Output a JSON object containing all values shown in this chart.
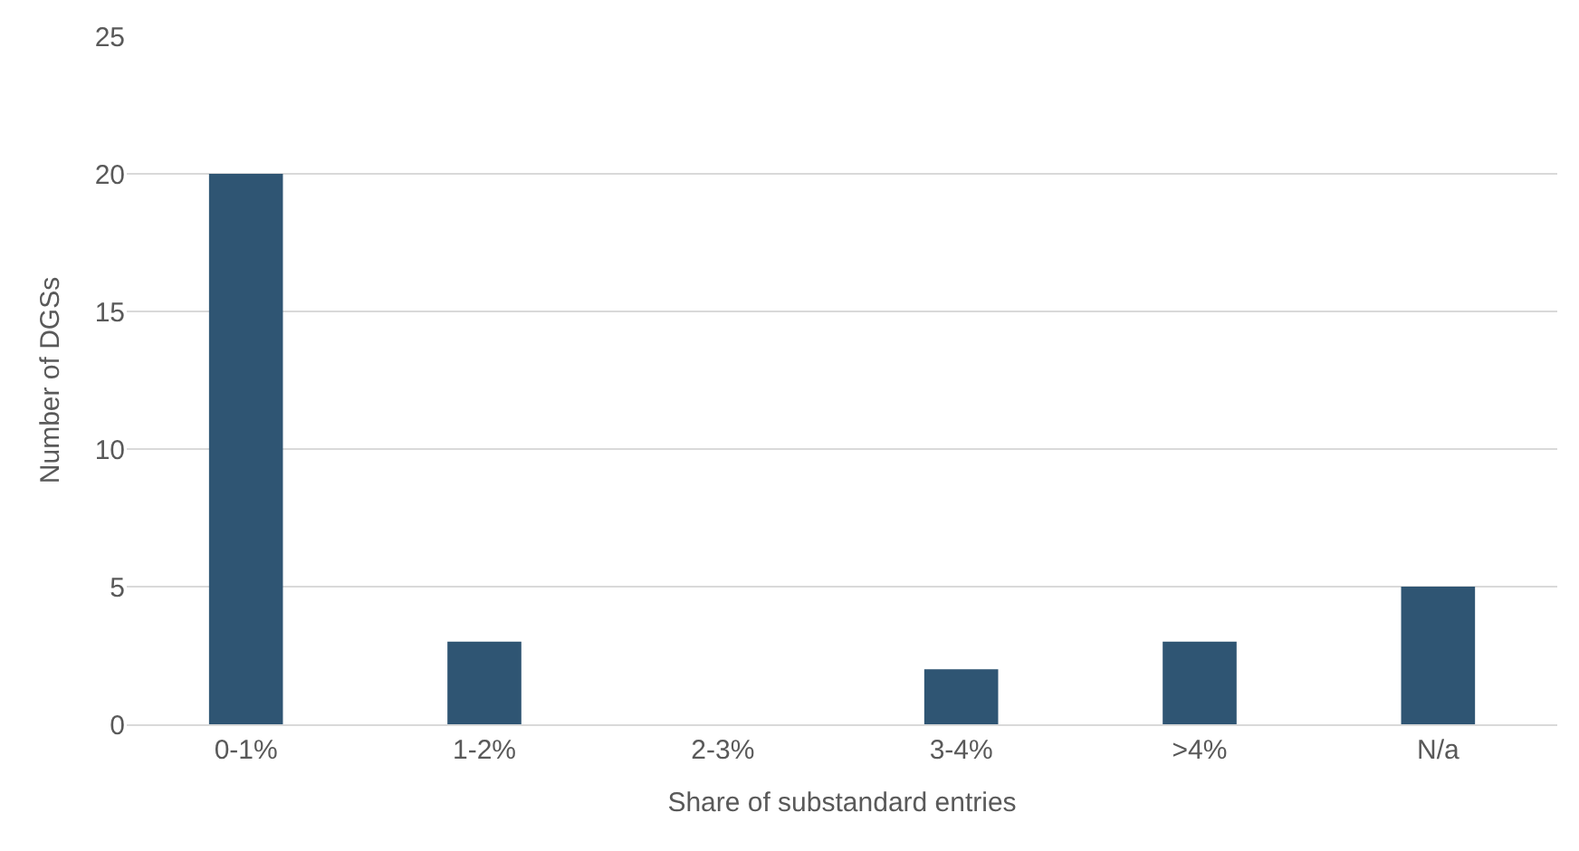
{
  "chart_data": {
    "type": "bar",
    "xlabel": "Share of substandard entries",
    "ylabel": "Number of DGSs",
    "categories": [
      "0-1%",
      "1-2%",
      "2-3%",
      "3-4%",
      ">4%",
      "N/a"
    ],
    "values": [
      20,
      3,
      0,
      2,
      3,
      5
    ],
    "color": "#2f5573",
    "ylim": [
      0,
      25
    ],
    "yticks": [
      0,
      5,
      10,
      15,
      20,
      25
    ],
    "grid": "y"
  }
}
